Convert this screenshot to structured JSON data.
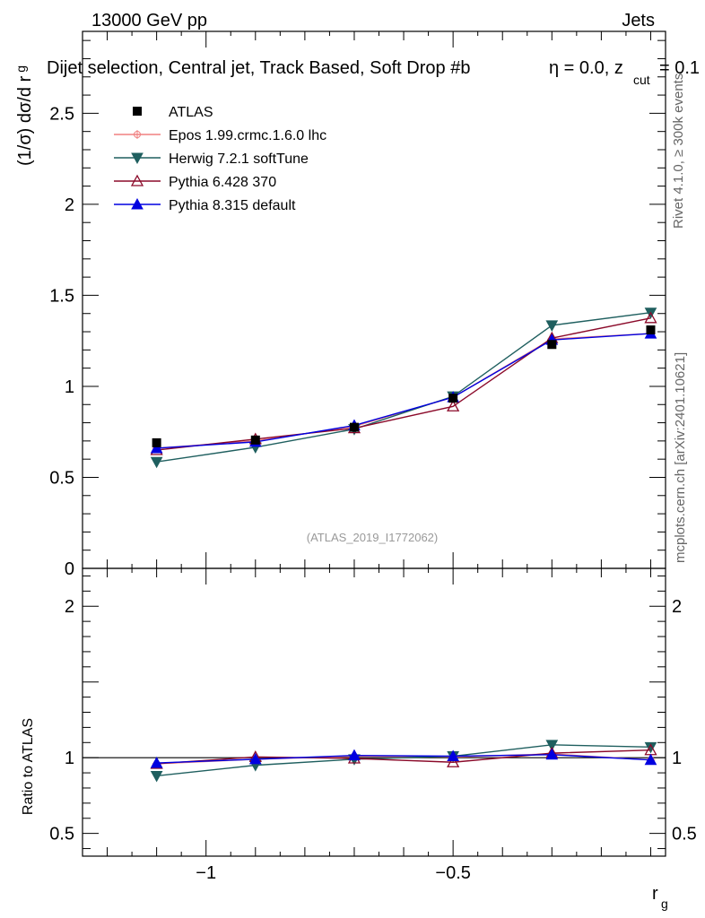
{
  "header": {
    "left": "13000 GeV pp",
    "right": "Jets"
  },
  "side_text": {
    "rivet": "Rivet 4.1.0, ≥ 300k events",
    "mcplots": "mcplots.cern.ch [arXiv:2401.10621]"
  },
  "chart_data": {
    "type": "line",
    "title": "Dijet selection, Central jet, Track Based, Soft Drop #b",
    "title_suffix": "η = 0.0, z",
    "title_sub": "cut",
    "title_tail": "= 0.1",
    "analysis": "(ATLAS_2019_I1772062)",
    "xlabel": "r",
    "xlabel_sub": "g",
    "ylabel": "(1/σ) dσ/d r",
    "ylabel_sub": "g",
    "ratio_ylabel": "Ratio to ATLAS",
    "xlim": [
      -1.25,
      -0.07
    ],
    "ylim": [
      0,
      2.95
    ],
    "ratio_ylim": [
      0.35,
      2.25
    ],
    "x_ticks": [
      {
        "v": -1,
        "label": "−1"
      },
      {
        "v": -0.5,
        "label": "−0.5"
      }
    ],
    "y_ticks": [
      {
        "v": 0,
        "label": "0"
      },
      {
        "v": 0.5,
        "label": "0.5"
      },
      {
        "v": 1,
        "label": "1"
      },
      {
        "v": 1.5,
        "label": "1.5"
      },
      {
        "v": 2,
        "label": "2"
      },
      {
        "v": 2.5,
        "label": "2.5"
      }
    ],
    "ratio_ticks": [
      {
        "v": 0.5,
        "label": "0.5"
      },
      {
        "v": 1,
        "label": "1"
      },
      {
        "v": 2,
        "label": "2"
      }
    ],
    "x": [
      -1.1,
      -0.9,
      -0.7,
      -0.5,
      -0.3,
      -0.1
    ],
    "data": {
      "name": "ATLAS",
      "values": [
        0.69,
        0.705,
        0.775,
        0.935,
        1.23,
        1.31
      ]
    },
    "series": [
      {
        "name": "Epos 1.99.crmc.1.6.0 lhc",
        "color": "#f08080",
        "marker": "cross",
        "values": [
          0.66,
          0.7,
          0.78,
          0.94,
          1.26,
          1.29
        ],
        "ratio": [
          0.96,
          0.99,
          1.01,
          1.005,
          1.025,
          0.985
        ]
      },
      {
        "name": "Herwig 7.2.1 softTune",
        "color": "#1f5f5f",
        "marker": "tri-down",
        "values": [
          0.585,
          0.665,
          0.765,
          0.945,
          1.335,
          1.405
        ],
        "ratio": [
          0.88,
          0.95,
          0.99,
          1.01,
          1.085,
          1.07
        ]
      },
      {
        "name": "Pythia 6.428 370",
        "color": "#8b0a2a",
        "marker": "tri-up-open",
        "values": [
          0.65,
          0.71,
          0.77,
          0.89,
          1.265,
          1.375
        ],
        "ratio": [
          0.96,
          1.005,
          0.995,
          0.97,
          1.03,
          1.05
        ]
      },
      {
        "name": "Pythia 8.315 default",
        "color": "#0000e0",
        "marker": "tri-up",
        "values": [
          0.66,
          0.695,
          0.785,
          0.94,
          1.255,
          1.29
        ],
        "ratio": [
          0.965,
          0.99,
          1.015,
          1.01,
          1.02,
          0.985
        ]
      }
    ]
  }
}
